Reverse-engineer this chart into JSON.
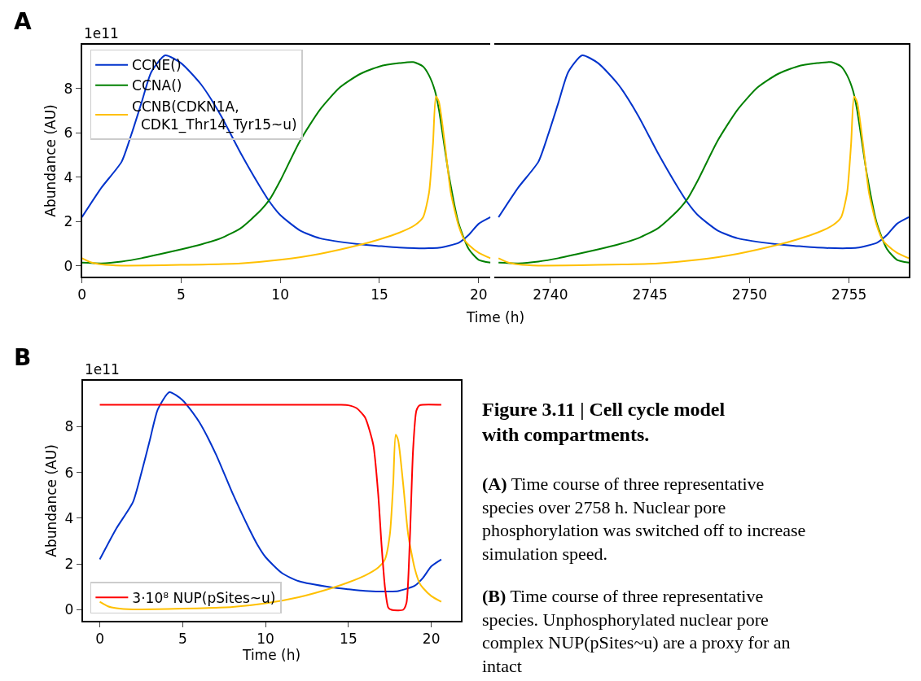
{
  "chart_data": [
    {
      "type": "line",
      "title": "A",
      "xlabel": "Time (h)",
      "ylabel": "Abundance (AU)",
      "annotations": [
        "1e11"
      ],
      "xlim": [
        0,
        20.6
      ],
      "ylim": [
        -0.48,
        9.98
      ],
      "xticks": [
        0,
        5,
        10,
        15,
        20
      ],
      "yticks": [
        0,
        2,
        4,
        6,
        8
      ],
      "legend": "top left",
      "series": [
        {
          "name": "CCNE()",
          "color": "#0033cc",
          "x": [
            0,
            1,
            2,
            2.5,
            3,
            3.5,
            4.2,
            5,
            6,
            7,
            8,
            9,
            9.5,
            10,
            11,
            12,
            14,
            15,
            16,
            17.5,
            18,
            19,
            19.5,
            20,
            20.6
          ],
          "values": [
            2.2,
            3.55,
            4.7,
            5.95,
            7.35,
            8.75,
            9.5,
            9.15,
            8.2,
            6.8,
            5.1,
            3.55,
            2.85,
            2.3,
            1.6,
            1.25,
            0.98,
            0.9,
            0.83,
            0.8,
            0.82,
            1.05,
            1.4,
            1.9,
            2.2
          ]
        },
        {
          "name": "CCNA()",
          "color": "#008000",
          "x": [
            0,
            1,
            2,
            3,
            4,
            5,
            6,
            7,
            8,
            9,
            9.5,
            10,
            11,
            12,
            13,
            14,
            15,
            16,
            16.7,
            17.2,
            17.5,
            17.8,
            18,
            18.5,
            19,
            19.5,
            20,
            20.6
          ],
          "values": [
            0.15,
            0.12,
            0.2,
            0.35,
            0.55,
            0.75,
            0.97,
            1.25,
            1.7,
            2.5,
            3.05,
            3.85,
            5.65,
            7.05,
            8.05,
            8.65,
            9.0,
            9.15,
            9.2,
            9.0,
            8.6,
            7.9,
            7.05,
            4.1,
            1.9,
            0.77,
            0.28,
            0.15
          ]
        },
        {
          "name": "CCNB(CDKN1A,\n  CDK1_Thr14_Tyr15~u)",
          "color": "#ffc000",
          "x": [
            0,
            0.5,
            1,
            2,
            5,
            8,
            10,
            12,
            14,
            15,
            16,
            16.8,
            17.2,
            17.5,
            17.7,
            17.85,
            18,
            18.3,
            18.6,
            19,
            19.3,
            19.5,
            20,
            20.6
          ],
          "values": [
            0.35,
            0.15,
            0.07,
            0.02,
            0.05,
            0.12,
            0.28,
            0.55,
            0.95,
            1.2,
            1.5,
            1.85,
            2.2,
            3.3,
            5.5,
            7.65,
            7.4,
            5.5,
            3.3,
            1.8,
            1.15,
            0.95,
            0.6,
            0.35
          ]
        }
      ]
    },
    {
      "type": "line",
      "xlim": [
        2737.2,
        2758
      ],
      "ylim": [
        -0.48,
        9.98
      ],
      "xticks": [
        2740,
        2745,
        2750,
        2755
      ],
      "tick_labels": "x",
      "series": [
        {
          "color": "#0033cc",
          "x": [
            2737.4,
            2738.4,
            2739.4,
            2739.9,
            2740.4,
            2740.9,
            2741.6,
            2742.4,
            2743.4,
            2744.4,
            2745.4,
            2746.4,
            2746.9,
            2747.4,
            2748.4,
            2749.4,
            2751.4,
            2752.4,
            2753.4,
            2754.9,
            2755.4,
            2756.4,
            2756.9,
            2757.4,
            2758
          ],
          "values": [
            2.2,
            3.55,
            4.7,
            5.95,
            7.35,
            8.75,
            9.5,
            9.15,
            8.2,
            6.8,
            5.1,
            3.55,
            2.85,
            2.3,
            1.6,
            1.25,
            0.98,
            0.9,
            0.83,
            0.8,
            0.82,
            1.05,
            1.4,
            1.9,
            2.2
          ]
        },
        {
          "color": "#008000",
          "x": [
            2737.4,
            2738.4,
            2739.4,
            2740.4,
            2741.4,
            2742.4,
            2743.4,
            2744.4,
            2745.4,
            2746.4,
            2746.9,
            2747.4,
            2748.4,
            2749.4,
            2750.4,
            2751.4,
            2752.4,
            2753.4,
            2754.1,
            2754.6,
            2754.9,
            2755.2,
            2755.4,
            2755.9,
            2756.4,
            2756.9,
            2757.4,
            2758
          ],
          "values": [
            0.15,
            0.12,
            0.2,
            0.35,
            0.55,
            0.75,
            0.97,
            1.25,
            1.7,
            2.5,
            3.05,
            3.85,
            5.65,
            7.05,
            8.05,
            8.65,
            9.0,
            9.15,
            9.2,
            9.0,
            8.6,
            7.9,
            7.05,
            4.1,
            1.9,
            0.77,
            0.28,
            0.15
          ]
        },
        {
          "color": "#ffc000",
          "x": [
            2737.4,
            2737.9,
            2738.4,
            2739.4,
            2742.4,
            2745.4,
            2747.4,
            2749.4,
            2751.4,
            2752.4,
            2753.4,
            2754.2,
            2754.6,
            2754.9,
            2755.1,
            2755.25,
            2755.4,
            2755.7,
            2756.0,
            2756.4,
            2756.7,
            2756.9,
            2757.4,
            2758
          ],
          "values": [
            0.35,
            0.15,
            0.07,
            0.02,
            0.05,
            0.12,
            0.28,
            0.55,
            0.95,
            1.2,
            1.5,
            1.85,
            2.2,
            3.3,
            5.5,
            7.65,
            7.4,
            5.5,
            3.3,
            1.8,
            1.15,
            0.95,
            0.6,
            0.35
          ]
        }
      ]
    },
    {
      "type": "line",
      "title": "B",
      "xlabel": "Time (h)",
      "ylabel": "Abundance (AU)",
      "annotations": [
        "1e11"
      ],
      "xlim": [
        -1.03,
        21.76
      ],
      "ylim": [
        -0.48,
        10.0
      ],
      "xticks": [
        0,
        5,
        10,
        15,
        20
      ],
      "yticks": [
        0,
        2,
        4,
        6,
        8
      ],
      "legend": "bottom left",
      "series": [
        {
          "color": "#0033cc",
          "x": [
            0,
            1,
            2,
            2.5,
            3,
            3.5,
            4.2,
            5,
            6,
            7,
            8,
            9,
            9.5,
            10,
            11,
            12,
            14,
            15,
            16,
            17.5,
            18,
            19,
            19.5,
            20,
            20.6
          ],
          "values": [
            2.2,
            3.55,
            4.7,
            5.95,
            7.35,
            8.75,
            9.5,
            9.15,
            8.2,
            6.8,
            5.1,
            3.55,
            2.85,
            2.3,
            1.6,
            1.25,
            0.98,
            0.9,
            0.83,
            0.8,
            0.82,
            1.05,
            1.4,
            1.9,
            2.2
          ]
        },
        {
          "color": "#ffc000",
          "x": [
            0,
            0.5,
            1,
            2,
            5,
            8,
            10,
            12,
            14,
            15,
            16,
            16.8,
            17.2,
            17.5,
            17.7,
            17.85,
            18,
            18.3,
            18.6,
            19,
            19.3,
            19.5,
            20,
            20.6
          ],
          "values": [
            0.35,
            0.15,
            0.07,
            0.02,
            0.05,
            0.12,
            0.28,
            0.55,
            0.95,
            1.2,
            1.5,
            1.85,
            2.2,
            3.3,
            5.5,
            7.65,
            7.4,
            5.5,
            3.3,
            1.8,
            1.15,
            0.95,
            0.6,
            0.35
          ]
        },
        {
          "name": "3·10⁸ NUP(pSites~u)",
          "color": "#ff0000",
          "x": [
            0,
            5,
            10,
            14.5,
            15,
            15.5,
            16,
            16.5,
            16.8,
            17,
            17.2,
            17.4,
            17.6,
            18.3,
            18.5,
            18.7,
            18.9,
            19.1,
            19.3,
            20.6
          ],
          "values": [
            8.95,
            8.95,
            8.95,
            8.95,
            8.93,
            8.8,
            8.4,
            7.2,
            5,
            2.8,
            1,
            0.1,
            0,
            0,
            0.3,
            3,
            7,
            8.7,
            8.93,
            8.95
          ]
        }
      ]
    },
    {
      "type": "other",
      "title": "Figure 3.11 | Cell cycle model with compartments.",
      "annotations": [
        "(A) Time course of three representative species over 2758 h. Nuclear pore phosphorylation was switched off to increase simulation speed.",
        "(B) Time course of three representative species. Unphosphorylated nuclear pore complex NUP(pSites~u) are a proxy for an intact"
      ]
    }
  ]
}
